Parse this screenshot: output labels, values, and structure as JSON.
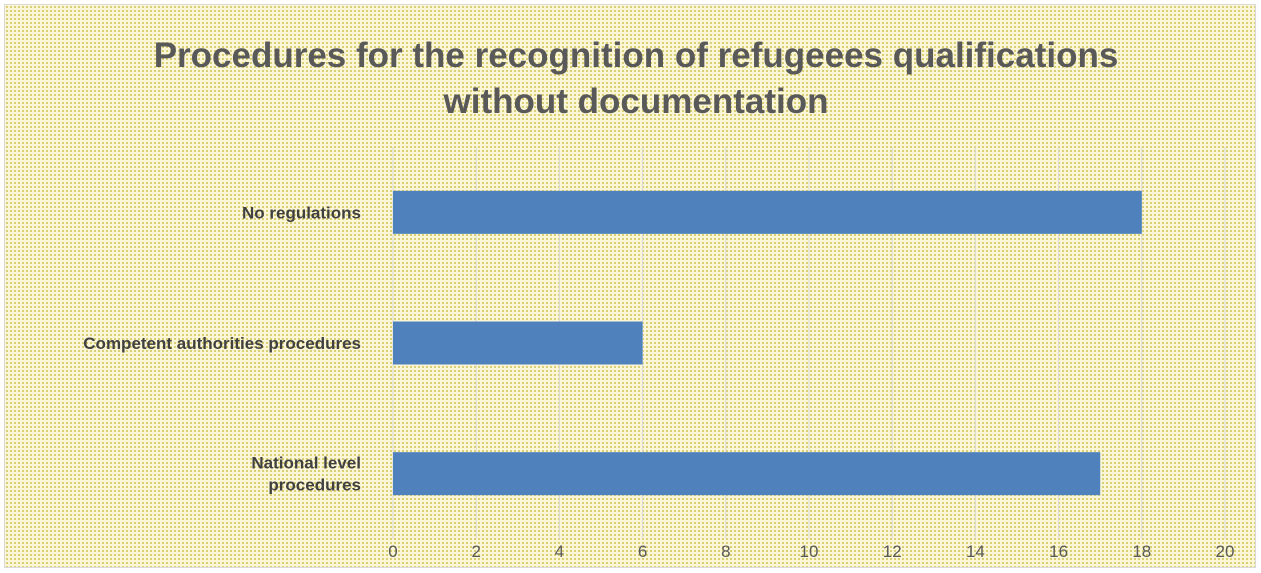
{
  "chart_data": {
    "type": "bar",
    "orientation": "horizontal",
    "title_lines": [
      "Procedures for the recognition of refugeees qualifications",
      "without documentation"
    ],
    "categories": [
      [
        "No regulations"
      ],
      [
        "Competent authorities procedures"
      ],
      [
        "National level",
        "procedures"
      ]
    ],
    "values": [
      18,
      6,
      17
    ],
    "xlim": [
      0,
      20
    ],
    "xticks": [
      "0",
      "2",
      "4",
      "6",
      "8",
      "10",
      "12",
      "14",
      "16",
      "18",
      "20"
    ],
    "grid": true,
    "legend": false,
    "colors": {
      "bar": "#4f81bd",
      "grid": "#d9d9d9",
      "background": "#fbf6d6"
    }
  }
}
